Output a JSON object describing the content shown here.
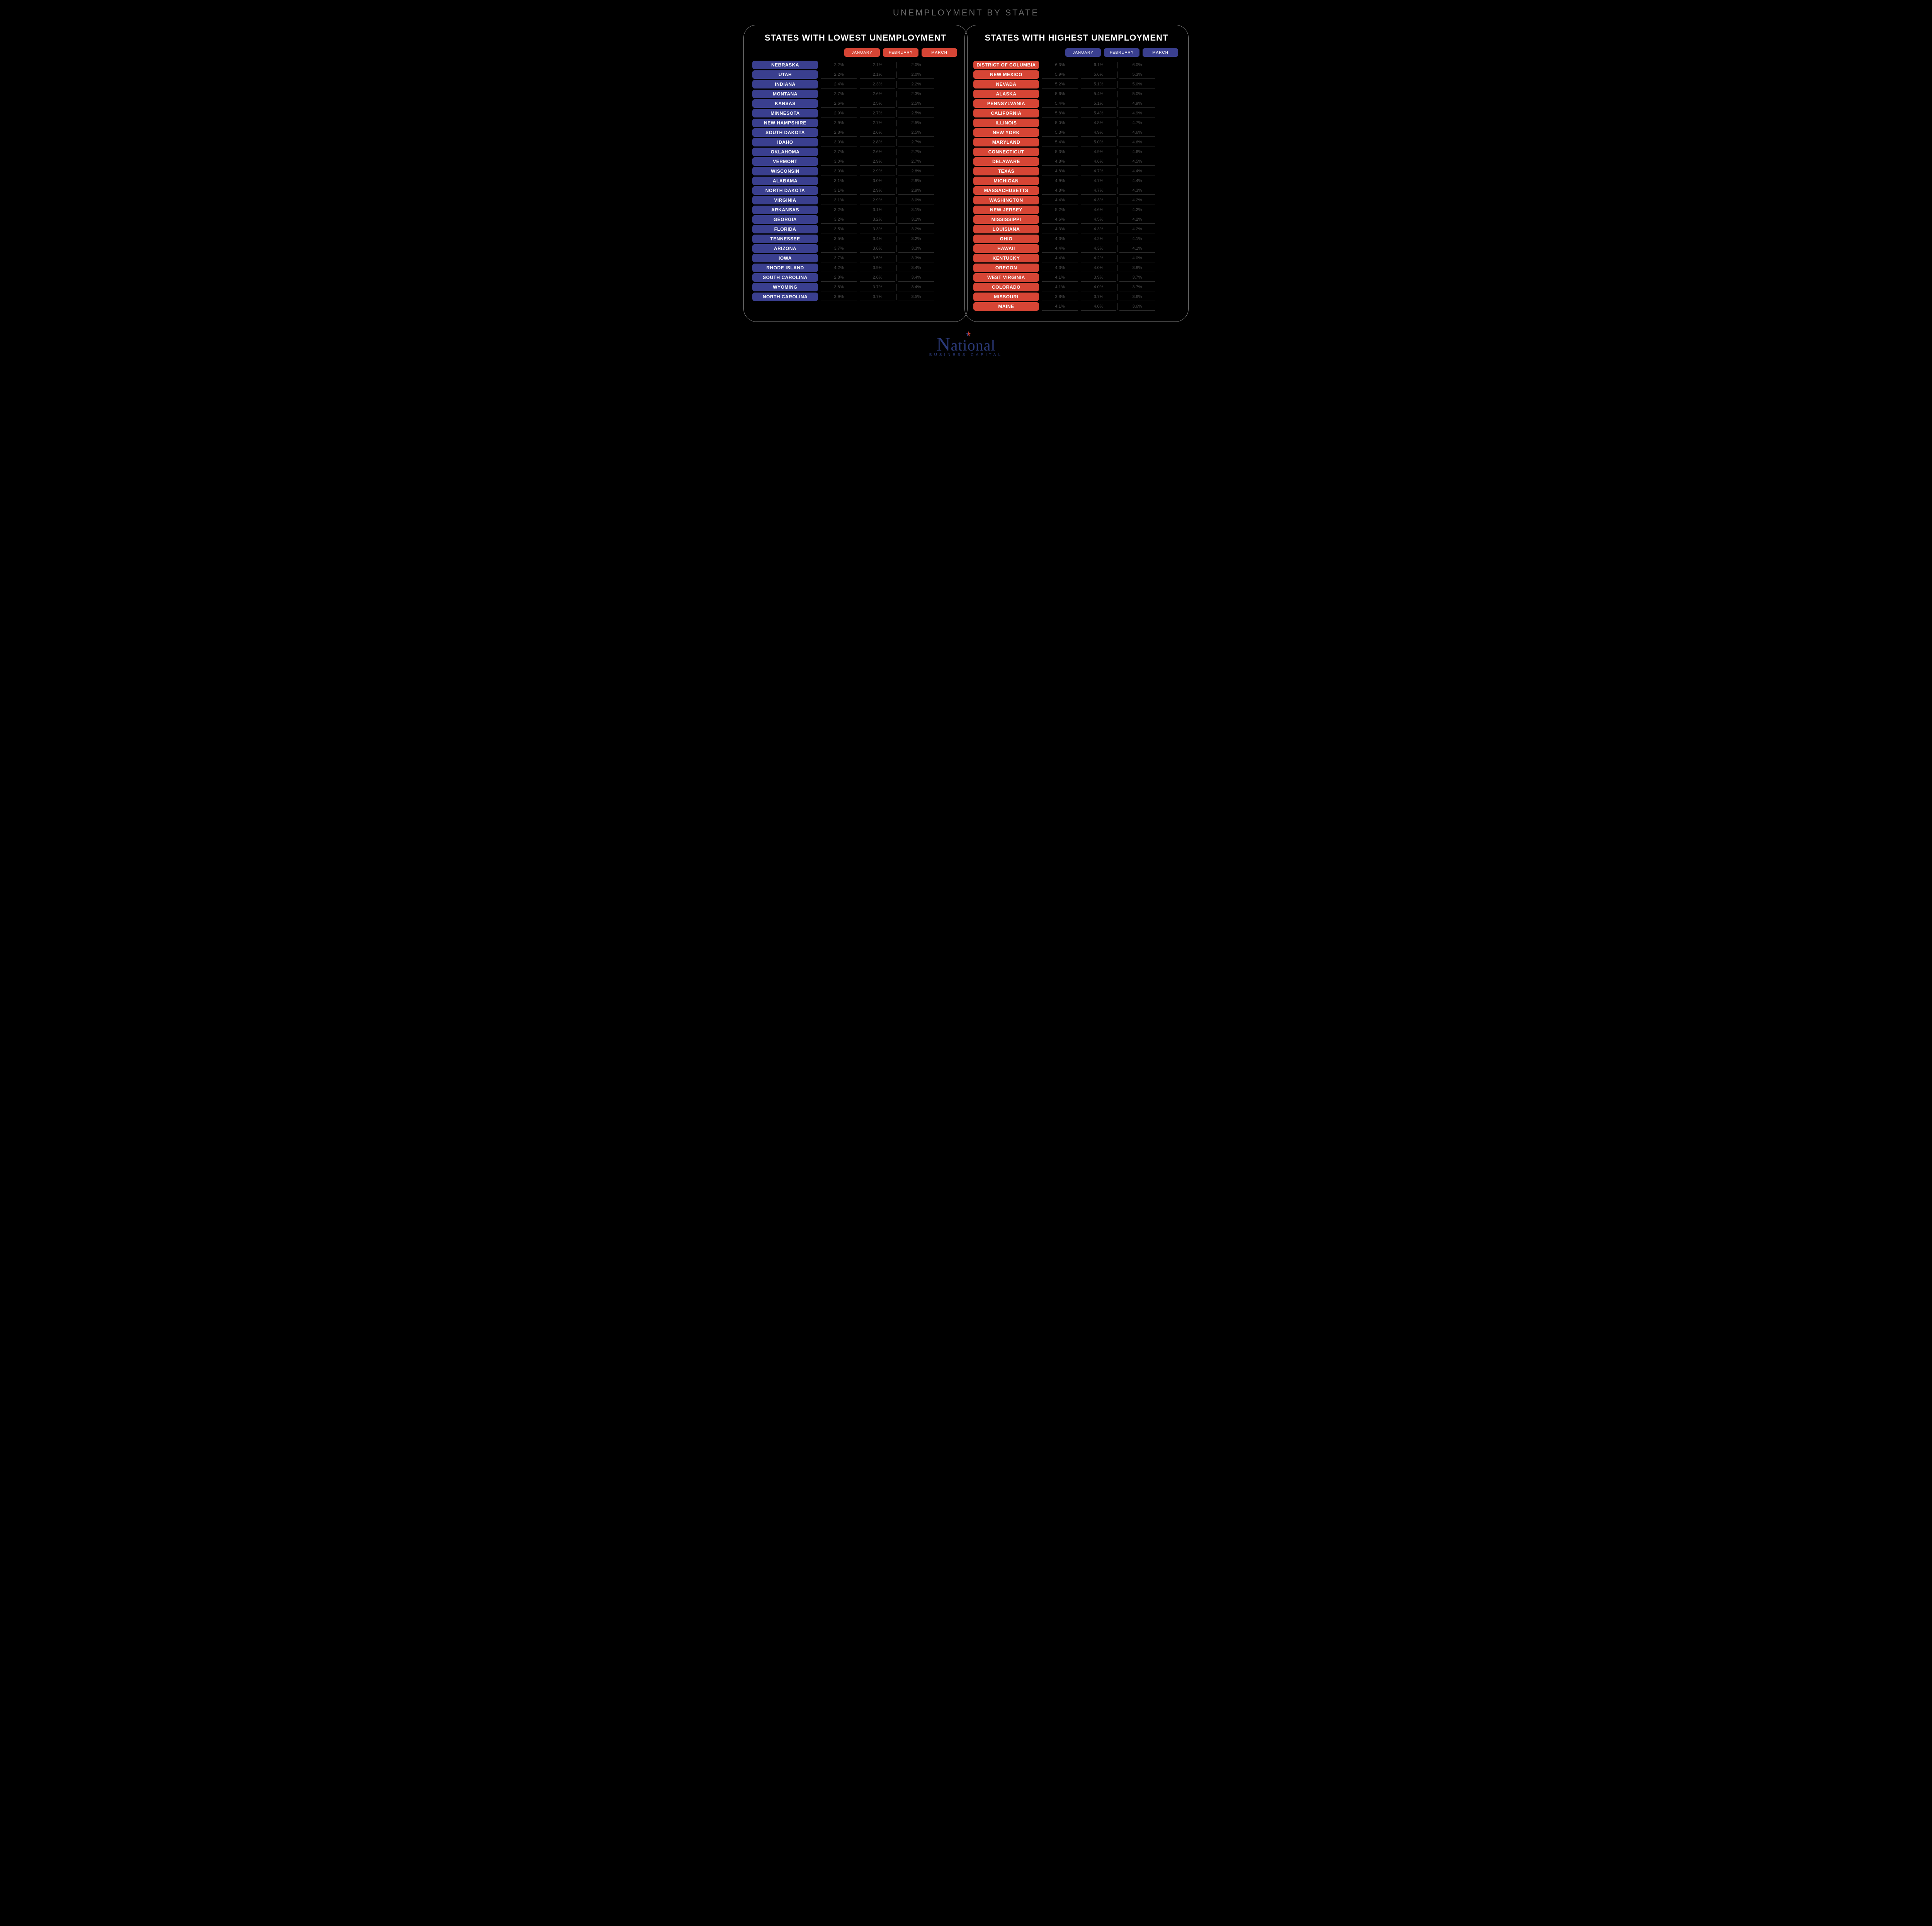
{
  "title": "UNEMPLOYMENT BY STATE",
  "months": [
    "JANUARY",
    "FEBRUARY",
    "MARCH"
  ],
  "colors": {
    "background": "#000000",
    "panel_border": "#808080",
    "title_text": "#6a6a6a",
    "heading_text": "#ffffff",
    "value_text": "#4a4a4a",
    "cell_divider": "#2a2a2a",
    "low_state_pill": "#3a3f8f",
    "low_month_pill": "#d64535",
    "high_state_pill": "#d64535",
    "high_month_pill": "#3a3f8f",
    "logo_text": "#2b3a7a",
    "star_red": "#c53a2e",
    "star_blue": "#2b3a7a"
  },
  "panels": {
    "lowest": {
      "title": "STATES WITH LOWEST UNEMPLOYMENT",
      "state_pill_color": "#3a3f8f",
      "month_pill_color": "#d64535",
      "rows": [
        {
          "state": "NEBRASKA",
          "v": [
            "2.2%",
            "2.1%",
            "2.0%"
          ]
        },
        {
          "state": "UTAH",
          "v": [
            "2.2%",
            "2.1%",
            "2.0%"
          ]
        },
        {
          "state": "INDIANA",
          "v": [
            "2.4%",
            "2.3%",
            "2.2%"
          ]
        },
        {
          "state": "MONTANA",
          "v": [
            "2.7%",
            "2.6%",
            "2.3%"
          ]
        },
        {
          "state": "KANSAS",
          "v": [
            "2.6%",
            "2.5%",
            "2.5%"
          ]
        },
        {
          "state": "MINNESOTA",
          "v": [
            "2.9%",
            "2.7%",
            "2.5%"
          ]
        },
        {
          "state": "NEW HAMPSHIRE",
          "v": [
            "2.9%",
            "2.7%",
            "2.5%"
          ]
        },
        {
          "state": "SOUTH DAKOTA",
          "v": [
            "2.8%",
            "2.6%",
            "2.5%"
          ]
        },
        {
          "state": "IDAHO",
          "v": [
            "3.0%",
            "2.8%",
            "2.7%"
          ]
        },
        {
          "state": "OKLAHOMA",
          "v": [
            "2.7%",
            "2.6%",
            "2.7%"
          ]
        },
        {
          "state": "VERMONT",
          "v": [
            "3.0%",
            "2.9%",
            "2.7%"
          ]
        },
        {
          "state": "WISCONSIN",
          "v": [
            "3.0%",
            "2.9%",
            "2.8%"
          ]
        },
        {
          "state": "ALABAMA",
          "v": [
            "3.1%",
            "3.0%",
            "2.9%"
          ]
        },
        {
          "state": "NORTH DAKOTA",
          "v": [
            "3.1%",
            "2.9%",
            "2.9%"
          ]
        },
        {
          "state": "VIRGINIA",
          "v": [
            "3.1%",
            "2.9%",
            "3.0%"
          ]
        },
        {
          "state": "ARKANSAS",
          "v": [
            "3.2%",
            "3.1%",
            "3.1%"
          ]
        },
        {
          "state": "GEORGIA",
          "v": [
            "3.2%",
            "3.2%",
            "3.1%"
          ]
        },
        {
          "state": "FLORIDA",
          "v": [
            "3.5%",
            "3.3%",
            "3.2%"
          ]
        },
        {
          "state": "TENNESSEE",
          "v": [
            "3.5%",
            "3.4%",
            "3.2%"
          ]
        },
        {
          "state": "ARIZONA",
          "v": [
            "3.7%",
            "3.6%",
            "3.3%"
          ]
        },
        {
          "state": "IOWA",
          "v": [
            "3.7%",
            "3.5%",
            "3.3%"
          ]
        },
        {
          "state": "RHODE ISLAND",
          "v": [
            "4.2%",
            "3.9%",
            "3.4%"
          ]
        },
        {
          "state": "SOUTH CAROLINA",
          "v": [
            "2.8%",
            "2.6%",
            "3.4%"
          ]
        },
        {
          "state": "WYOMING",
          "v": [
            "3.8%",
            "3.7%",
            "3.4%"
          ]
        },
        {
          "state": "NORTH CAROLINA",
          "v": [
            "3.9%",
            "3.7%",
            "3.5%"
          ]
        }
      ]
    },
    "highest": {
      "title": "STATES WITH HIGHEST UNEMPLOYMENT",
      "state_pill_color": "#d64535",
      "month_pill_color": "#3a3f8f",
      "rows": [
        {
          "state": "DISTRICT OF COLUMBIA",
          "v": [
            "6.3%",
            "6.1%",
            "6.0%"
          ]
        },
        {
          "state": "NEW MEXICO",
          "v": [
            "5.9%",
            "5.6%",
            "5.3%"
          ]
        },
        {
          "state": "NEVADA",
          "v": [
            "5.2%",
            "5.1%",
            "5.0%"
          ]
        },
        {
          "state": "ALASKA",
          "v": [
            "5.6%",
            "5.4%",
            "5.0%"
          ]
        },
        {
          "state": "PENNSYLVANIA",
          "v": [
            "5.4%",
            "5.1%",
            "4.9%"
          ]
        },
        {
          "state": "CALIFORNIA",
          "v": [
            "5.8%",
            "5.4%",
            "4.9%"
          ]
        },
        {
          "state": "ILLINOIS",
          "v": [
            "5.0%",
            "4.8%",
            "4.7%"
          ]
        },
        {
          "state": "NEW YORK",
          "v": [
            "5.3%",
            "4.9%",
            "4.6%"
          ]
        },
        {
          "state": "MARYLAND",
          "v": [
            "5.4%",
            "5.0%",
            "4.6%"
          ]
        },
        {
          "state": "CONNECTICUT",
          "v": [
            "5.3%",
            "4.9%",
            "4.6%"
          ]
        },
        {
          "state": "DELAWARE",
          "v": [
            "4.8%",
            "4.6%",
            "4.5%"
          ]
        },
        {
          "state": "TEXAS",
          "v": [
            "4.8%",
            "4.7%",
            "4.4%"
          ]
        },
        {
          "state": "MICHIGAN",
          "v": [
            "4.9%",
            "4.7%",
            "4.4%"
          ]
        },
        {
          "state": "MASSACHUSETTS",
          "v": [
            "4.8%",
            "4.7%",
            "4.3%"
          ]
        },
        {
          "state": "WASHINGTON",
          "v": [
            "4.4%",
            "4.3%",
            "4.2%"
          ]
        },
        {
          "state": "NEW JERSEY",
          "v": [
            "5.2%",
            "4.6%",
            "4.2%"
          ]
        },
        {
          "state": "MISSISSIPPI",
          "v": [
            "4.6%",
            "4.5%",
            "4.2%"
          ]
        },
        {
          "state": "LOUISIANA",
          "v": [
            "4.3%",
            "4.3%",
            "4.2%"
          ]
        },
        {
          "state": "OHIO",
          "v": [
            "4.3%",
            "4.2%",
            "4.1%"
          ]
        },
        {
          "state": "HAWAII",
          "v": [
            "4.4%",
            "4.3%",
            "4.1%"
          ]
        },
        {
          "state": "KENTUCKY",
          "v": [
            "4.4%",
            "4.2%",
            "4.0%"
          ]
        },
        {
          "state": "OREGON",
          "v": [
            "4.3%",
            "4.0%",
            "3.8%"
          ]
        },
        {
          "state": "WEST VIRGINIA",
          "v": [
            "4.1%",
            "3.9%",
            "3.7%"
          ]
        },
        {
          "state": "COLORADO",
          "v": [
            "4.1%",
            "4.0%",
            "3.7%"
          ]
        },
        {
          "state": "MISSOURI",
          "v": [
            "3.8%",
            "3.7%",
            "3.6%"
          ]
        },
        {
          "state": "MAINE",
          "v": [
            "4.1%",
            "4.0%",
            "3.6%"
          ]
        }
      ]
    }
  },
  "logo": {
    "main": "National",
    "sub": "BUSINESS CAPITAL"
  }
}
